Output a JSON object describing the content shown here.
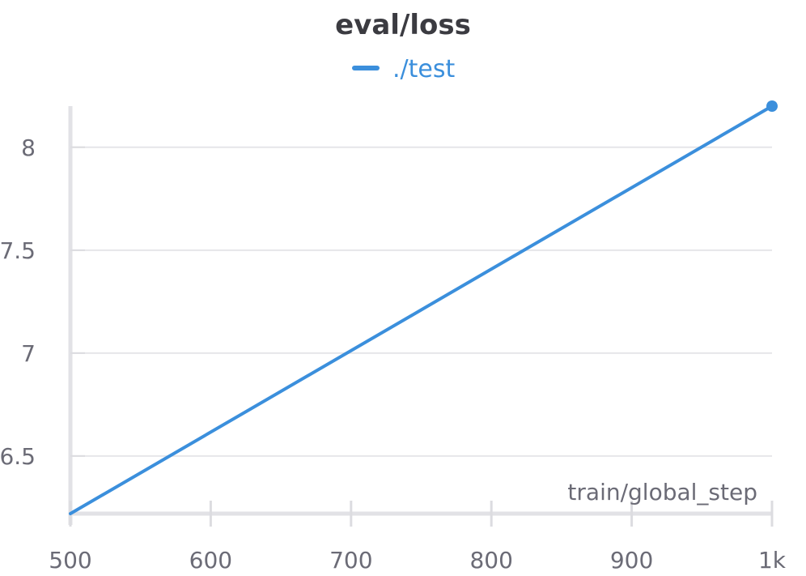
{
  "chart_data": {
    "type": "line",
    "title": "eval/loss",
    "xlabel": "train/global_step",
    "ylabel": "",
    "xlim": [
      500,
      1000
    ],
    "ylim": [
      6.22,
      8.2
    ],
    "x_ticks": [
      500,
      600,
      700,
      800,
      900,
      1000
    ],
    "x_tick_labels": [
      "500",
      "600",
      "700",
      "800",
      "900",
      "1k"
    ],
    "y_ticks": [
      6.5,
      7,
      7.5,
      8
    ],
    "y_tick_labels": [
      "6.5",
      "7",
      "7.5",
      "8"
    ],
    "grid": true,
    "legend_position": "top-center",
    "series": [
      {
        "name": "./test",
        "color": "#3b8fdc",
        "x": [
          500,
          1000
        ],
        "y": [
          6.22,
          8.2
        ]
      }
    ]
  }
}
